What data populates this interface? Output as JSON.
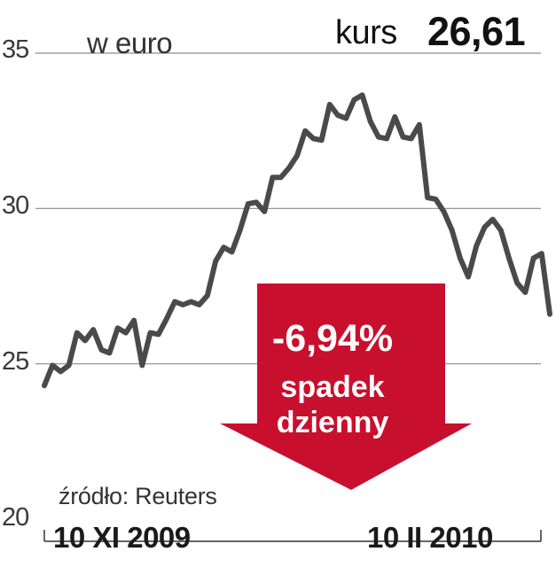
{
  "chart_data": {
    "type": "line",
    "unit_label": "w euro",
    "price_label": "kurs",
    "price_value": "26,61",
    "change_text": "-6,94%",
    "change_caption": [
      "spadek",
      "dzienny"
    ],
    "source": "źródło: Reuters",
    "x_labels": [
      "10 XI 2009",
      "10 II 2010"
    ],
    "yticks": [
      "20",
      "25",
      "30",
      "35"
    ],
    "ylim": [
      20,
      35
    ],
    "grid": true,
    "series": [
      {
        "values": [
          24.3,
          24.95,
          24.75,
          24.95,
          26.0,
          25.75,
          26.1,
          25.45,
          25.35,
          26.15,
          26.0,
          26.4,
          24.95,
          26.0,
          25.95,
          26.45,
          27.0,
          26.9,
          27.0,
          26.9,
          27.2,
          28.3,
          28.75,
          28.6,
          29.3,
          30.15,
          30.2,
          29.9,
          31.0,
          31.0,
          31.3,
          31.7,
          32.5,
          32.25,
          32.2,
          33.35,
          33.0,
          32.9,
          33.5,
          33.65,
          32.8,
          32.3,
          32.25,
          32.95,
          32.3,
          32.25,
          32.7,
          30.35,
          30.3,
          29.9,
          29.3,
          28.4,
          27.8,
          28.8,
          29.4,
          29.65,
          29.3,
          28.4,
          27.6,
          27.3,
          28.4,
          28.55,
          26.6
        ]
      }
    ],
    "colors": {
      "line": "#4a4a4a",
      "grid": "#8a8a8a",
      "arrow": "#c8102e",
      "text": "#1a1a1a"
    }
  }
}
